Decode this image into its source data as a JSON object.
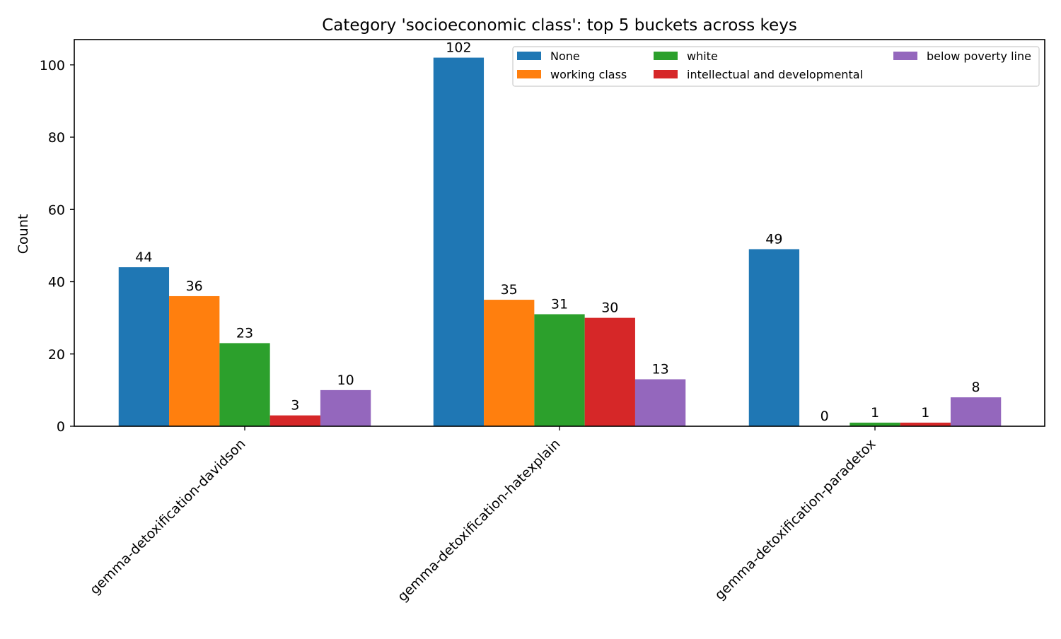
{
  "chart_data": {
    "type": "bar",
    "title": "Category 'socioeconomic class': top 5 buckets across keys",
    "xlabel": "",
    "ylabel": "Count",
    "categories": [
      "gemma-detoxification-davidson",
      "gemma-detoxification-hatexplain",
      "gemma-detoxification-paradetox"
    ],
    "series": [
      {
        "name": "None",
        "color": "#1f77b4",
        "values": [
          44,
          102,
          49
        ]
      },
      {
        "name": "working class",
        "color": "#ff7f0e",
        "values": [
          36,
          35,
          0
        ]
      },
      {
        "name": "white",
        "color": "#2ca02c",
        "values": [
          23,
          31,
          1
        ]
      },
      {
        "name": "intellectual and developmental",
        "color": "#d62728",
        "values": [
          3,
          30,
          1
        ]
      },
      {
        "name": "below poverty line",
        "color": "#9467bd",
        "values": [
          10,
          13,
          8
        ]
      }
    ],
    "ylim": [
      0,
      107
    ],
    "yticks": [
      0,
      20,
      40,
      60,
      80,
      100
    ],
    "grid": false,
    "legend_position": "top-right",
    "legend_columns": 3,
    "data_labels": true
  }
}
